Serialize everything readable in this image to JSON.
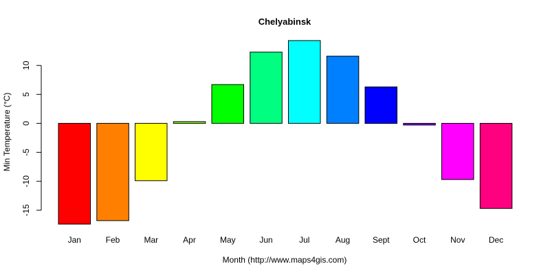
{
  "chart_data": {
    "type": "bar",
    "title": "Chelyabinsk",
    "xlabel": "Month (http://www.maps4gis.com)",
    "ylabel": "Min Temperature (°C)",
    "categories": [
      "Jan",
      "Feb",
      "Mar",
      "Apr",
      "May",
      "Jun",
      "Jul",
      "Aug",
      "Sept",
      "Oct",
      "Nov",
      "Dec"
    ],
    "values": [
      -17.4,
      -16.8,
      -9.9,
      0.3,
      6.7,
      12.3,
      14.3,
      11.6,
      6.3,
      -0.3,
      -9.7,
      -14.7
    ],
    "colors": [
      "#FF0000",
      "#FF8000",
      "#FFFF00",
      "#80FF00",
      "#00FF00",
      "#00FF80",
      "#00FFFF",
      "#0080FF",
      "#0000FF",
      "#8000FF",
      "#FF00FF",
      "#FF0080"
    ],
    "yticks": [
      -15,
      -10,
      -5,
      0,
      5,
      10
    ],
    "ytick_labels": [
      "-15",
      "-10",
      "-5",
      "0",
      "5",
      "10"
    ],
    "ylim": [
      -17.4,
      14.3
    ],
    "grid": false,
    "legend": false
  }
}
